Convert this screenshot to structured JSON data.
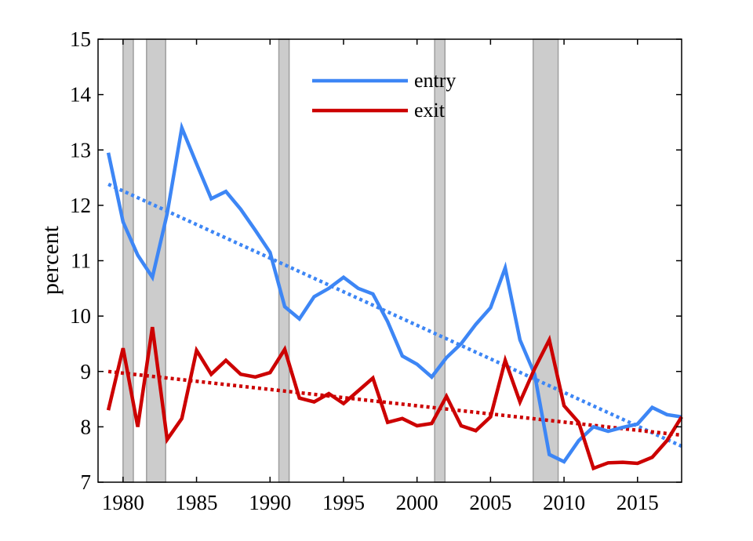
{
  "chart_data": {
    "type": "line",
    "title": "",
    "xlabel": "",
    "ylabel": "percent",
    "xlim": [
      1978.3,
      2018
    ],
    "ylim": [
      7,
      15
    ],
    "xticks": [
      1980,
      1985,
      1990,
      1995,
      2000,
      2005,
      2010,
      2015
    ],
    "yticks": [
      7,
      8,
      9,
      10,
      11,
      12,
      13,
      14,
      15
    ],
    "grid": false,
    "legend_position": "top-center",
    "recession_bands": [
      [
        1980.0,
        1980.7
      ],
      [
        1981.6,
        1982.9
      ],
      [
        1990.6,
        1991.3
      ],
      [
        2001.2,
        2001.9
      ],
      [
        2007.9,
        2009.6
      ]
    ],
    "series": [
      {
        "name": "entry",
        "color": "#3d86f5",
        "style": "solid",
        "x": [
          1979,
          1980,
          1981,
          1982,
          1983,
          1984,
          1985,
          1986,
          1987,
          1988,
          1989,
          1990,
          1991,
          1992,
          1993,
          1994,
          1995,
          1996,
          1997,
          1998,
          1999,
          2000,
          2001,
          2002,
          2003,
          2004,
          2005,
          2006,
          2007,
          2008,
          2009,
          2010,
          2011,
          2012,
          2013,
          2014,
          2015,
          2016,
          2017,
          2018
        ],
        "values": [
          12.95,
          11.7,
          11.1,
          10.7,
          11.85,
          13.4,
          12.75,
          12.12,
          12.25,
          11.93,
          11.55,
          11.15,
          10.17,
          9.95,
          10.35,
          10.5,
          10.7,
          10.5,
          10.4,
          9.9,
          9.28,
          9.13,
          8.9,
          9.25,
          9.5,
          9.85,
          10.15,
          10.87,
          9.57,
          8.95,
          7.5,
          7.37,
          7.75,
          8.0,
          7.92,
          7.99,
          8.05,
          8.35,
          8.22,
          8.18
        ]
      },
      {
        "name": "exit",
        "color": "#cc0000",
        "style": "solid",
        "x": [
          1979,
          1980,
          1981,
          1982,
          1983,
          1984,
          1985,
          1986,
          1987,
          1988,
          1989,
          1990,
          1991,
          1992,
          1993,
          1994,
          1995,
          1996,
          1997,
          1998,
          1999,
          2000,
          2001,
          2002,
          2003,
          2004,
          2005,
          2006,
          2007,
          2008,
          2009,
          2010,
          2011,
          2012,
          2013,
          2014,
          2015,
          2016,
          2017,
          2018
        ],
        "values": [
          8.3,
          9.42,
          8.0,
          9.8,
          7.77,
          8.15,
          9.38,
          8.95,
          9.2,
          8.95,
          8.9,
          8.98,
          9.4,
          8.52,
          8.45,
          8.6,
          8.42,
          8.65,
          8.88,
          8.08,
          8.15,
          8.02,
          8.06,
          8.55,
          8.02,
          7.93,
          8.18,
          9.2,
          8.45,
          9.05,
          9.57,
          8.38,
          8.08,
          7.25,
          7.35,
          7.36,
          7.34,
          7.45,
          7.75,
          8.18
        ]
      },
      {
        "name": "",
        "color": "#3d86f5",
        "style": "dotted",
        "x": [
          1979,
          2018
        ],
        "values": [
          12.38,
          7.65
        ]
      },
      {
        "name": "",
        "color": "#cc0000",
        "style": "dotted",
        "x": [
          1979,
          2018
        ],
        "values": [
          9.0,
          7.85
        ]
      }
    ]
  }
}
